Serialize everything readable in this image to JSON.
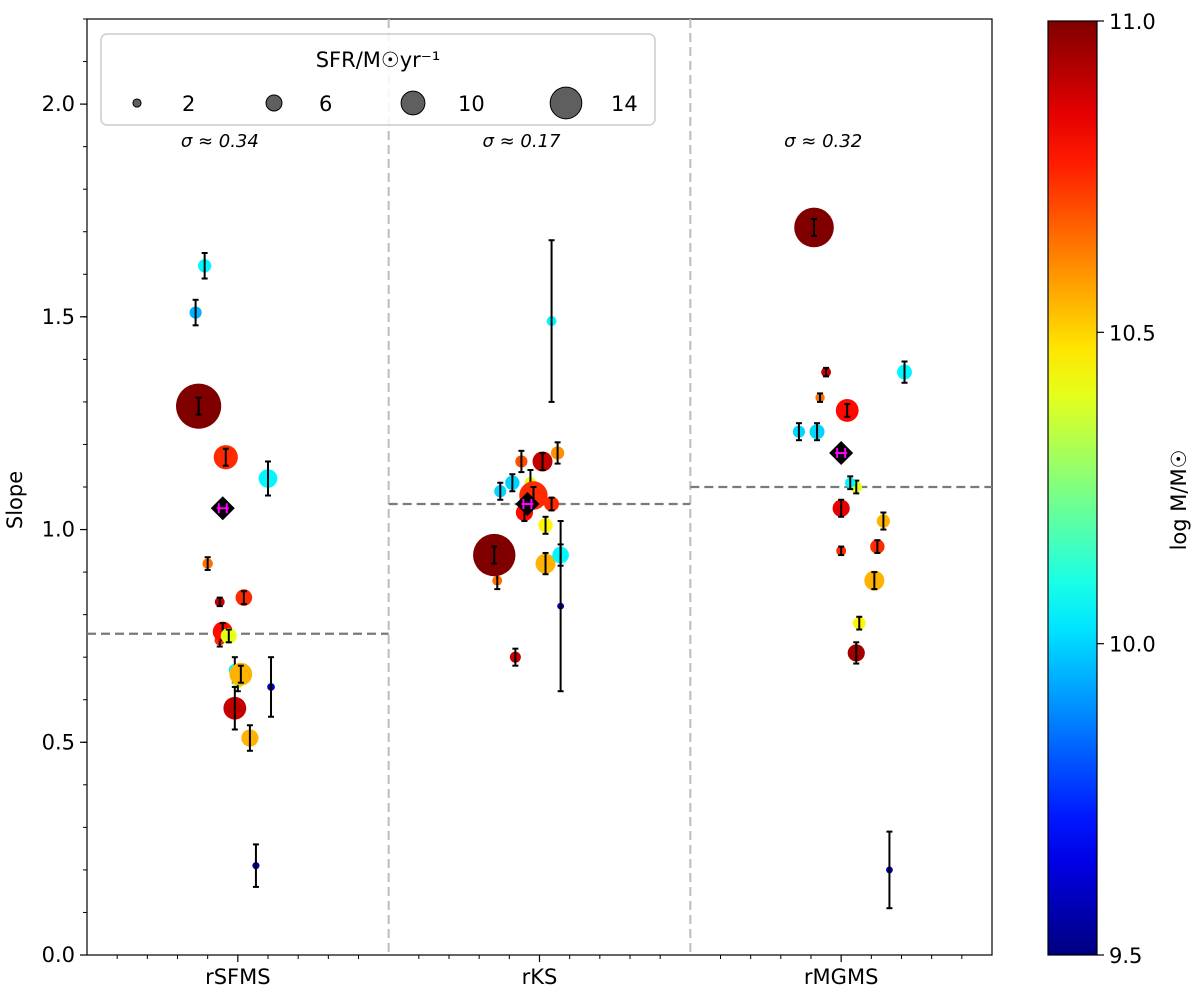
{
  "chart_data": {
    "type": "scatter",
    "ylabel": "Slope",
    "ylim": [
      0.0,
      2.2
    ],
    "yticks": [
      0.0,
      0.5,
      1.0,
      1.5,
      2.0
    ],
    "ytick_labels": [
      "0.0",
      "0.5",
      "1.0",
      "1.5",
      "2.0"
    ],
    "yminor_step": 0.1,
    "categories": [
      "rSFMS",
      "rKS",
      "rMGMS"
    ],
    "sigma_labels": [
      "σ ≈ 0.34",
      "σ ≈ 0.17",
      "σ ≈ 0.32"
    ],
    "median_lines": [
      0.755,
      1.06,
      1.1
    ],
    "legend": {
      "title": "SFR/M☉yr⁻¹",
      "entries": [
        "2",
        "6",
        "10",
        "14"
      ],
      "sizes": [
        2,
        6,
        10,
        14
      ]
    },
    "colorbar": {
      "label": "log M/M☉",
      "min": 9.5,
      "max": 11.0,
      "ticks": [
        9.5,
        10.0,
        10.5,
        11.0
      ],
      "tick_labels": [
        "9.5",
        "10.0",
        "10.5",
        "11.0"
      ],
      "colormap": "jet"
    },
    "panels": [
      {
        "category": "rSFMS",
        "points": [
          {
            "x": -0.14,
            "y": 1.51,
            "err": 0.03,
            "mass": 9.95,
            "sfr": 2.2
          },
          {
            "x": -0.11,
            "y": 1.62,
            "err": 0.03,
            "mass": 10.05,
            "sfr": 2.6
          },
          {
            "x": -0.13,
            "y": 1.29,
            "err": 0.02,
            "mass": 11.0,
            "sfr": 14.0
          },
          {
            "x": -0.1,
            "y": 0.92,
            "err": 0.015,
            "mass": 10.65,
            "sfr": 1.6
          },
          {
            "x": -0.04,
            "y": 1.17,
            "err": 0.02,
            "mass": 10.75,
            "sfr": 6.5
          },
          {
            "x": -0.06,
            "y": 0.83,
            "err": 0.01,
            "mass": 10.9,
            "sfr": 1.4
          },
          {
            "x": -0.06,
            "y": 0.74,
            "err": 0.015,
            "mass": 10.75,
            "sfr": 1.6
          },
          {
            "x": -0.05,
            "y": 0.76,
            "err": 0.02,
            "mass": 10.8,
            "sfr": 5.0
          },
          {
            "x": 0.02,
            "y": 0.84,
            "err": 0.015,
            "mass": 10.75,
            "sfr": 3.8
          },
          {
            "x": -0.01,
            "y": 0.67,
            "err": 0.03,
            "mass": 10.05,
            "sfr": 2.2
          },
          {
            "x": 0.0,
            "y": 0.64,
            "err": 0.02,
            "mass": 10.35,
            "sfr": 1.8
          },
          {
            "x": -0.03,
            "y": 0.75,
            "err": 0.015,
            "mass": 10.4,
            "sfr": 3.6
          },
          {
            "x": -0.01,
            "y": 0.58,
            "err": 0.05,
            "mass": 10.9,
            "sfr": 6.0
          },
          {
            "x": 0.01,
            "y": 0.66,
            "err": 0.02,
            "mass": 10.55,
            "sfr": 6.0
          },
          {
            "x": 0.04,
            "y": 0.51,
            "err": 0.03,
            "mass": 10.55,
            "sfr": 4.0
          },
          {
            "x": 0.1,
            "y": 1.12,
            "err": 0.04,
            "mass": 10.05,
            "sfr": 4.5
          },
          {
            "x": 0.11,
            "y": 0.63,
            "err": 0.07,
            "mass": 9.6,
            "sfr": 0.6
          },
          {
            "x": 0.06,
            "y": 0.21,
            "err": 0.05,
            "mass": 9.55,
            "sfr": 0.4
          }
        ],
        "median_point": {
          "x": -0.05,
          "y": 1.05
        }
      },
      {
        "category": "rKS",
        "points": [
          {
            "x": -0.13,
            "y": 1.09,
            "err": 0.02,
            "mass": 10.0,
            "sfr": 2.2
          },
          {
            "x": -0.09,
            "y": 1.11,
            "err": 0.02,
            "mass": 10.0,
            "sfr": 3.0
          },
          {
            "x": -0.06,
            "y": 1.16,
            "err": 0.025,
            "mass": 10.7,
            "sfr": 2.2
          },
          {
            "x": -0.03,
            "y": 1.11,
            "err": 0.03,
            "mass": 10.4,
            "sfr": 2.0
          },
          {
            "x": 0.01,
            "y": 1.16,
            "err": 0.02,
            "mass": 10.9,
            "sfr": 5.0
          },
          {
            "x": 0.06,
            "y": 1.18,
            "err": 0.025,
            "mass": 10.6,
            "sfr": 2.6
          },
          {
            "x": 0.04,
            "y": 1.06,
            "err": 0.015,
            "mass": 10.75,
            "sfr": 3.2
          },
          {
            "x": -0.02,
            "y": 1.08,
            "err": 0.02,
            "mass": 10.75,
            "sfr": 8.0
          },
          {
            "x": -0.05,
            "y": 1.04,
            "err": 0.02,
            "mass": 10.8,
            "sfr": 4.0
          },
          {
            "x": -0.14,
            "y": 0.88,
            "err": 0.02,
            "mass": 10.65,
            "sfr": 1.4
          },
          {
            "x": -0.15,
            "y": 0.94,
            "err": 0.02,
            "mass": 11.0,
            "sfr": 13.0
          },
          {
            "x": 0.02,
            "y": 1.01,
            "err": 0.02,
            "mass": 10.45,
            "sfr": 3.0
          },
          {
            "x": 0.02,
            "y": 0.92,
            "err": 0.025,
            "mass": 10.55,
            "sfr": 5.0
          },
          {
            "x": 0.07,
            "y": 0.94,
            "err": 0.025,
            "mass": 10.05,
            "sfr": 3.8
          },
          {
            "x": 0.04,
            "y": 1.49,
            "err": 0.19,
            "mass": 10.05,
            "sfr": 1.4
          },
          {
            "x": 0.07,
            "y": 0.82,
            "err": 0.2,
            "mass": 9.55,
            "sfr": 0.3
          },
          {
            "x": -0.08,
            "y": 0.7,
            "err": 0.02,
            "mass": 10.9,
            "sfr": 1.8
          }
        ],
        "median_point": {
          "x": -0.04,
          "y": 1.06
        }
      },
      {
        "category": "rMGMS",
        "points": [
          {
            "x": -0.14,
            "y": 1.23,
            "err": 0.02,
            "mass": 10.0,
            "sfr": 2.2
          },
          {
            "x": -0.08,
            "y": 1.23,
            "err": 0.02,
            "mass": 10.0,
            "sfr": 3.2
          },
          {
            "x": -0.09,
            "y": 1.71,
            "err": 0.02,
            "mass": 11.0,
            "sfr": 12.0
          },
          {
            "x": -0.07,
            "y": 1.31,
            "err": 0.01,
            "mass": 10.65,
            "sfr": 1.2
          },
          {
            "x": -0.05,
            "y": 1.37,
            "err": 0.01,
            "mass": 10.9,
            "sfr": 1.4
          },
          {
            "x": 0.02,
            "y": 1.28,
            "err": 0.015,
            "mass": 10.8,
            "sfr": 6.0
          },
          {
            "x": 0.0,
            "y": 1.05,
            "err": 0.02,
            "mass": 10.85,
            "sfr": 4.0
          },
          {
            "x": 0.0,
            "y": 0.95,
            "err": 0.01,
            "mass": 10.75,
            "sfr": 1.4
          },
          {
            "x": 0.05,
            "y": 1.1,
            "err": 0.015,
            "mass": 10.4,
            "sfr": 2.0
          },
          {
            "x": 0.03,
            "y": 1.11,
            "err": 0.015,
            "mass": 10.05,
            "sfr": 1.6
          },
          {
            "x": 0.06,
            "y": 0.78,
            "err": 0.015,
            "mass": 10.45,
            "sfr": 2.4
          },
          {
            "x": 0.05,
            "y": 0.71,
            "err": 0.025,
            "mass": 10.95,
            "sfr": 4.0
          },
          {
            "x": 0.12,
            "y": 0.96,
            "err": 0.015,
            "mass": 10.75,
            "sfr": 3.0
          },
          {
            "x": 0.11,
            "y": 0.88,
            "err": 0.02,
            "mass": 10.55,
            "sfr": 5.0
          },
          {
            "x": 0.14,
            "y": 1.02,
            "err": 0.02,
            "mass": 10.55,
            "sfr": 2.6
          },
          {
            "x": 0.21,
            "y": 1.37,
            "err": 0.025,
            "mass": 10.05,
            "sfr": 3.2
          },
          {
            "x": 0.16,
            "y": 0.2,
            "err": 0.09,
            "mass": 9.55,
            "sfr": 0.3
          }
        ],
        "median_point": {
          "x": 0.0,
          "y": 1.18
        }
      }
    ]
  }
}
